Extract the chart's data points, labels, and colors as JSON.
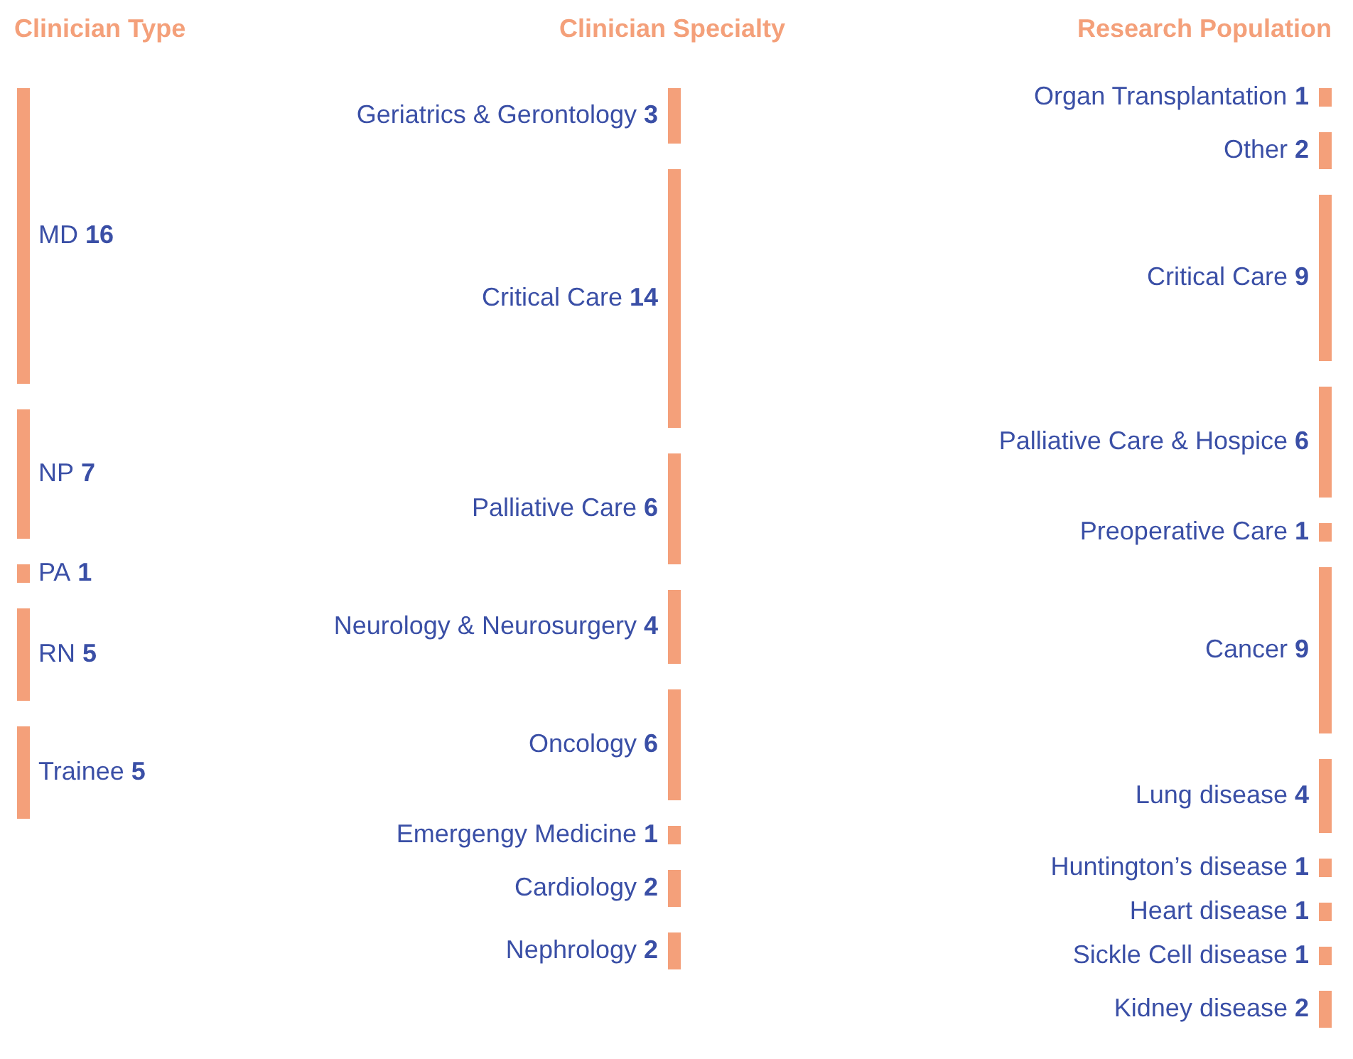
{
  "chart_data": [
    {
      "type": "other",
      "title": "Clinician Type",
      "categories": [
        "MD",
        "NP",
        "PA",
        "RN",
        "Trainee"
      ],
      "values": [
        16,
        7,
        1,
        5,
        5
      ],
      "color": "#f4a07a",
      "data_labels": true
    },
    {
      "type": "other",
      "title": "Clinician Specialty",
      "categories": [
        "Geriatrics & Gerontology",
        "Critical Care",
        "Palliative Care",
        "Neurology & Neurosurgery",
        "Oncology",
        "Emergengy Medicine",
        "Cardiology",
        "Nephrology"
      ],
      "values": [
        3,
        14,
        6,
        4,
        6,
        1,
        2,
        2
      ],
      "color": "#f4a07a",
      "data_labels": true
    },
    {
      "type": "other",
      "title": "Research Population",
      "categories": [
        "Organ Transplantation",
        "Other",
        "Critical Care",
        "Palliative Care & Hospice",
        "Preoperative Care",
        "Cancer",
        "Lung disease",
        "Huntington’s disease",
        "Heart disease",
        "Sickle Cell disease",
        "Kidney disease"
      ],
      "values": [
        1,
        2,
        9,
        6,
        1,
        9,
        4,
        1,
        1,
        1,
        2
      ],
      "color": "#f4a07a",
      "data_labels": true
    }
  ]
}
